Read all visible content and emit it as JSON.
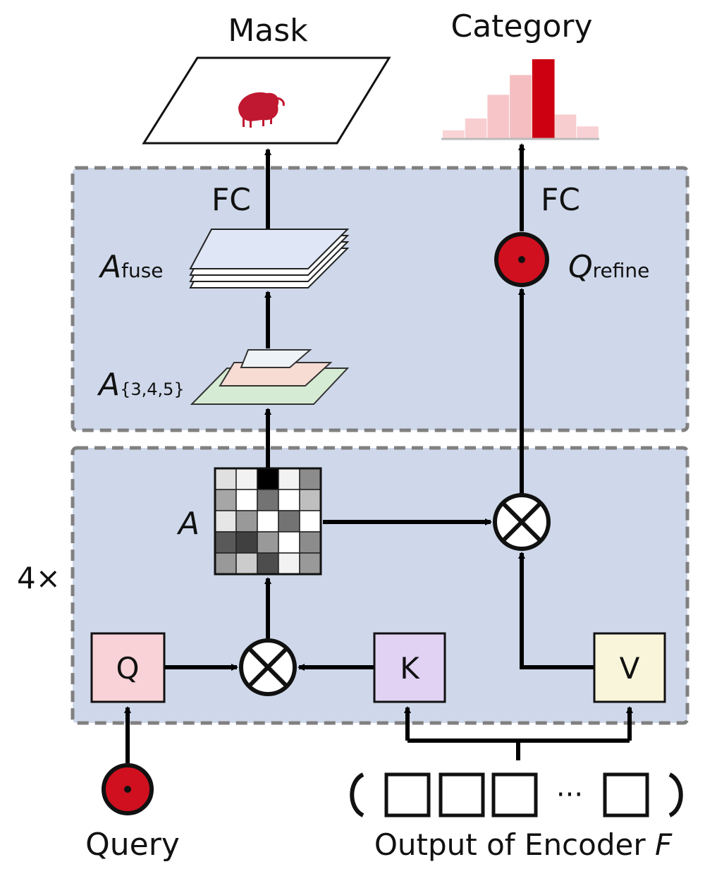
{
  "labels": {
    "mask": "Mask",
    "category": "Category",
    "fc_left": "FC",
    "fc_right": "FC",
    "a_fuse_main": "A",
    "a_fuse_sub": "fuse",
    "a_multi_main": "A",
    "a_multi_sub": "{3,4,5}",
    "q_refine_main": "Q",
    "q_refine_sub": "refine",
    "a_matrix": "A",
    "repeat": "4×",
    "q_box": "Q",
    "k_box": "K",
    "v_box": "V",
    "query": "Query",
    "encoder_output": "Output of Encoder",
    "encoder_symbol": "F",
    "ellipsis": "···"
  },
  "colors": {
    "panel_fill": "#cfd8ea",
    "panel_border": "#808080",
    "q_fill": "#f9d2d8",
    "k_fill": "#e1d2f3",
    "v_fill": "#f8f5da",
    "token_red": "#d0101f",
    "histogram_highlight": "#cc0010",
    "histogram_light": "#f4b4b8"
  },
  "attention_matrix": [
    [
      0.88,
      0.95,
      0.0,
      0.95,
      0.55
    ],
    [
      0.65,
      1.0,
      0.45,
      1.0,
      0.75
    ],
    [
      0.9,
      0.6,
      1.0,
      0.45,
      1.0
    ],
    [
      0.35,
      0.25,
      0.6,
      1.0,
      0.55
    ],
    [
      0.6,
      0.8,
      0.3,
      0.95,
      0.6
    ]
  ],
  "category_histogram": [
    0.1,
    0.25,
    0.55,
    0.8,
    1.0,
    0.3,
    0.15
  ],
  "category_highlight_index": 4,
  "encoder_tokens": [
    "t1",
    "t2",
    "t3",
    "t4"
  ]
}
